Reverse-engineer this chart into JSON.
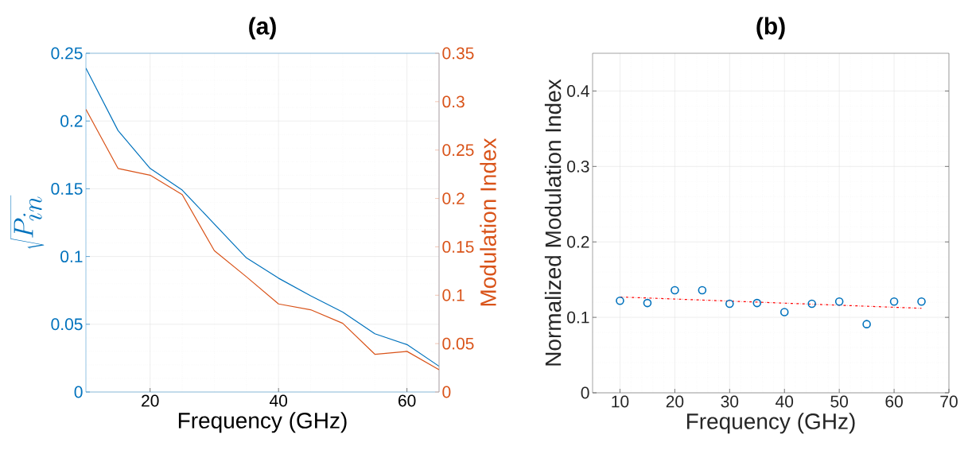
{
  "chart_data": [
    {
      "type": "line",
      "title": "(a)",
      "xlabel": "Frequency (GHz)",
      "ylabel": "\\sqrt{P_{in}}",
      "y2label": "Modulation Index",
      "x": [
        10,
        15,
        20,
        25,
        30,
        35,
        40,
        45,
        50,
        55,
        60,
        65
      ],
      "xlim": [
        10,
        65
      ],
      "xticks": [
        20,
        40,
        60
      ],
      "ylim": [
        0,
        0.25
      ],
      "yticks": [
        0,
        0.05,
        0.1,
        0.15,
        0.2,
        0.25
      ],
      "y2lim": [
        0,
        0.35
      ],
      "y2ticks": [
        0,
        0.05,
        0.1,
        0.15,
        0.2,
        0.25,
        0.3,
        0.35
      ],
      "grid": true,
      "series": [
        {
          "color": "#0072bd",
          "values": [
            0.239,
            0.193,
            0.165,
            0.149,
            0.124,
            0.099,
            0.084,
            0.071,
            0.059,
            0.043,
            0.035,
            0.019
          ]
        },
        {
          "color": "#d95319",
          "axis": "y2",
          "values": [
            0.292,
            0.231,
            0.224,
            0.204,
            0.146,
            0.119,
            0.091,
            0.085,
            0.071,
            0.039,
            0.042,
            0.023
          ]
        }
      ]
    },
    {
      "type": "scatter",
      "title": "(b)",
      "xlabel": "Frequency (GHz)",
      "ylabel": "Normalized Modulation Index",
      "x": [
        10,
        15,
        20,
        25,
        30,
        35,
        40,
        45,
        50,
        55,
        60,
        65
      ],
      "xlim": [
        5,
        70
      ],
      "xticks": [
        10,
        20,
        30,
        40,
        50,
        60,
        70
      ],
      "ylim": [
        0,
        0.45
      ],
      "yticks": [
        0,
        0.1,
        0.2,
        0.3,
        0.4
      ],
      "grid": true,
      "marker": "circle",
      "series": [
        {
          "color": "#0072bd",
          "values": [
            0.122,
            0.119,
            0.136,
            0.136,
            0.118,
            0.119,
            0.107,
            0.118,
            0.121,
            0.091,
            0.121,
            0.121
          ]
        },
        {
          "type": "line",
          "x": [
            10,
            65
          ],
          "color": "#ff0000",
          "marker": "none",
          "line_style": "dashdot",
          "values": [
            0.127,
            0.112
          ]
        }
      ]
    }
  ]
}
